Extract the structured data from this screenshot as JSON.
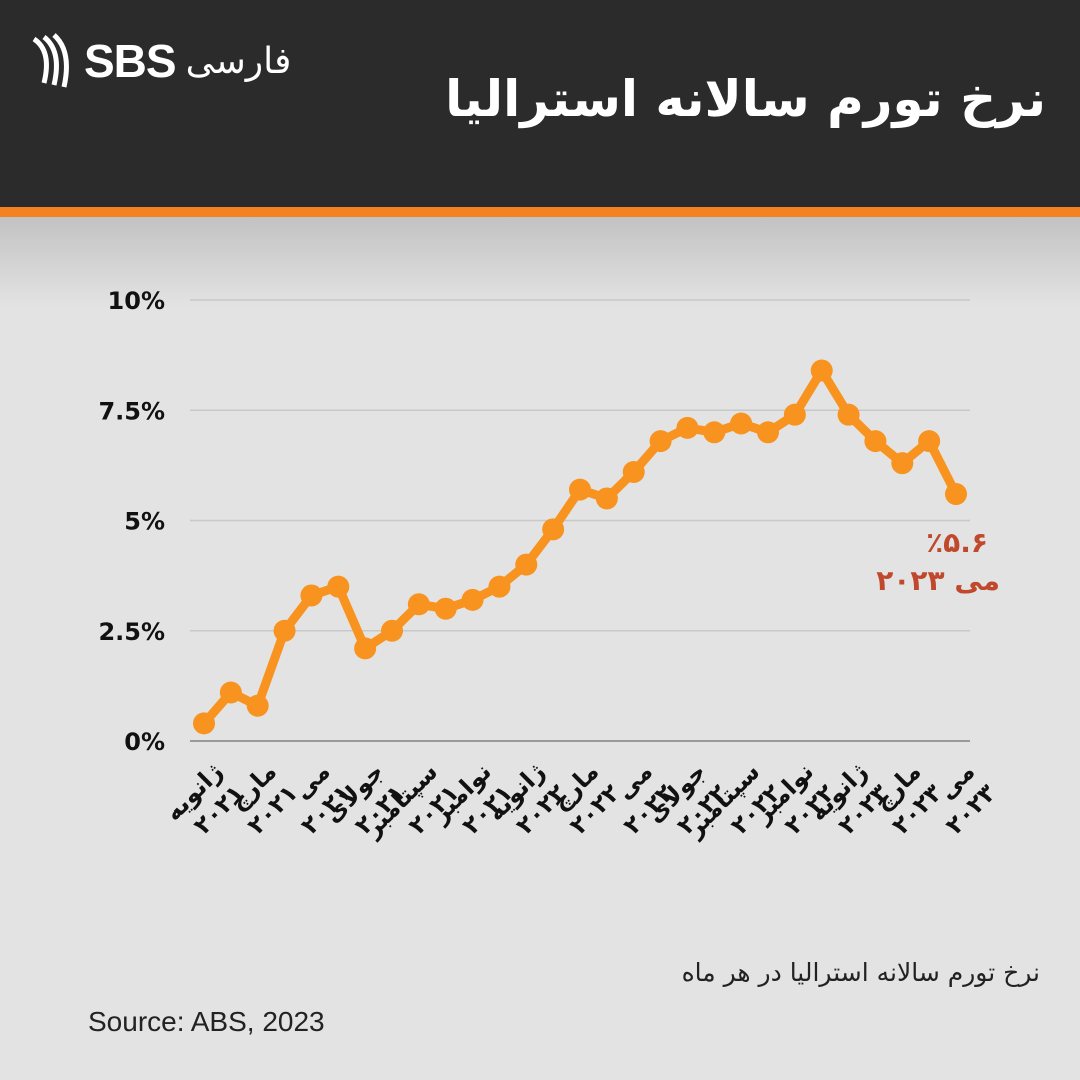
{
  "header": {
    "brand": "SBS",
    "brand_language": "فارسی",
    "title": "نرخ تورم سالانه استرالیا"
  },
  "chart_data": {
    "type": "line",
    "title": "نرخ تورم سالانه استرالیا",
    "y_ticks": [
      "0%",
      "2.5%",
      "5%",
      "7.5%",
      "10%"
    ],
    "ylim": [
      0,
      10
    ],
    "grid": true,
    "x_tick_labels": [
      [
        "ژانویه",
        "۲۰۲۱"
      ],
      [
        "مارچ",
        "۲۰۲۱"
      ],
      [
        "می",
        "۲۰۲۱"
      ],
      [
        "جولای",
        "۲۰۲۱"
      ],
      [
        "سپتامبر",
        "۲۰۲۱"
      ],
      [
        "نوامبر",
        "۲۰۲۱"
      ],
      [
        "ژانویه",
        "۲۰۲۲"
      ],
      [
        "مارچ",
        "۲۰۲۲"
      ],
      [
        "می",
        "۲۰۲۲"
      ],
      [
        "جولای",
        "۲۰۲۲"
      ],
      [
        "سپتامبر",
        "۲۰۲۲"
      ],
      [
        "نوامبر",
        "۲۰۲۲"
      ],
      [
        "ژانویه",
        "۲۰۲۳"
      ],
      [
        "مارچ",
        "۲۰۲۳"
      ],
      [
        "می",
        "۲۰۲۳"
      ]
    ],
    "series": [
      {
        "color": "#f7931e",
        "values": [
          0.4,
          1.1,
          0.8,
          2.5,
          3.3,
          3.5,
          2.1,
          2.5,
          3.1,
          3.0,
          3.2,
          3.5,
          4.0,
          4.8,
          5.7,
          5.5,
          6.1,
          6.8,
          7.1,
          7.0,
          7.2,
          7.0,
          7.4,
          8.4,
          7.4,
          6.8,
          6.3,
          6.8,
          5.6
        ]
      }
    ],
    "annotation": {
      "value_text": "٪۵.۶",
      "date_text": "می ۲۰۲۳",
      "color": "#c0482c"
    }
  },
  "footer": {
    "caption": "نرخ تورم سالانه استرالیا در هر ماه",
    "source": "Source: ABS, 2023"
  }
}
